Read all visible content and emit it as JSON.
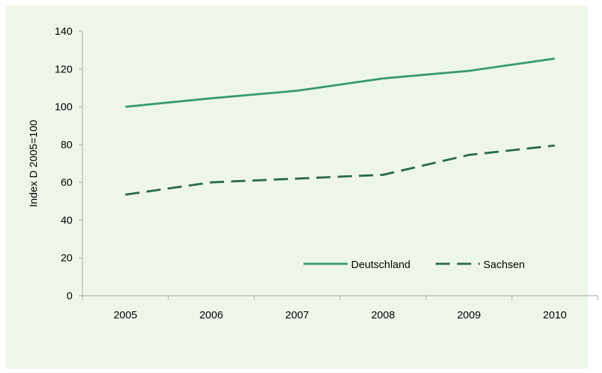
{
  "chart_data": {
    "type": "line",
    "title": "",
    "xlabel": "",
    "ylabel": "Index D 2005=100",
    "categories": [
      "2005",
      "2006",
      "2007",
      "2008",
      "2009",
      "2010"
    ],
    "ylim": [
      0,
      140
    ],
    "yticks": [
      0,
      20,
      40,
      60,
      80,
      100,
      120,
      140
    ],
    "grid": false,
    "legend_position": "bottom-right",
    "series": [
      {
        "name": "Deutschland",
        "values": [
          100,
          104.5,
          108.5,
          115,
          119,
          125.5
        ],
        "color": "#3a9a76",
        "dash": "solid"
      },
      {
        "name": "Sachsen",
        "values": [
          53.5,
          60,
          62,
          64,
          74.5,
          79.5
        ],
        "color": "#2b6b4f",
        "dash": "dashed"
      }
    ],
    "background_color": "#eef6ea"
  }
}
